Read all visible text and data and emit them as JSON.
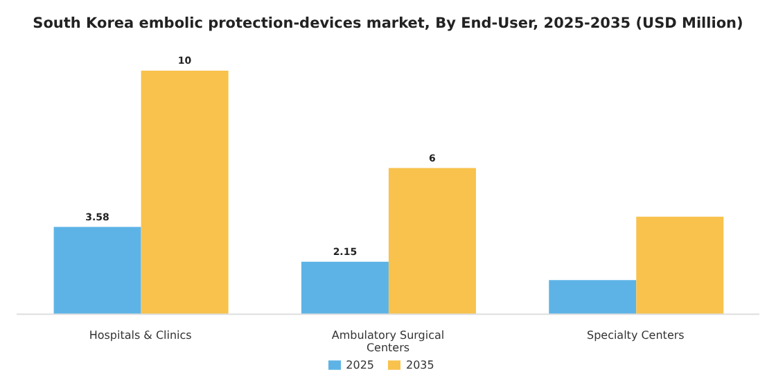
{
  "chart_data": {
    "type": "bar",
    "title": "South Korea embolic protection-devices market, By End-User, 2025-2035 (USD Million)",
    "categories": [
      "Hospitals & Clinics",
      "Ambulatory Surgical Centers",
      "Specialty Centers"
    ],
    "series": [
      {
        "name": "2025",
        "color": "#5db3e6",
        "values": [
          3.58,
          2.15,
          1.4
        ],
        "value_labels": [
          "3.58",
          "2.15",
          null
        ]
      },
      {
        "name": "2035",
        "color": "#f8c24c",
        "values": [
          10,
          6,
          4
        ],
        "value_labels": [
          "10",
          "6",
          null
        ]
      }
    ],
    "grid": false,
    "legend": "bottom"
  }
}
